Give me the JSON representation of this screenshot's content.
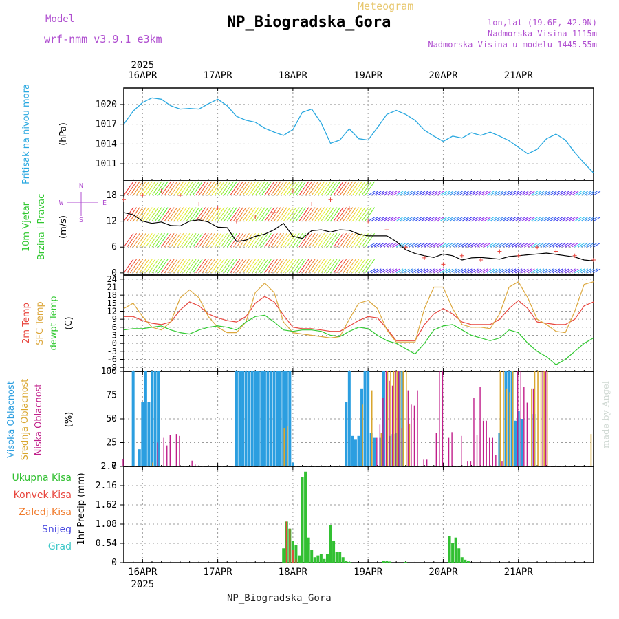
{
  "header": {
    "meteogram_label": "Meteogram",
    "station": "NP_Biogradska_Gora",
    "model_label": "Model",
    "model_value": "wrf-nmm_v3.9.1 e3km",
    "coord_line": "lon,lat (19.6E, 42.9N)",
    "elev_line": "Nadmorska Visina 1115m",
    "model_elev_line": "Nadmorska Visina u modelu 1445.55m"
  },
  "footer": {
    "station": "NP_Biogradska_Gora",
    "watermark": "made by Angel"
  },
  "colors": {
    "pressure": "#29a8e0",
    "wind_speed": "#000000",
    "t2m": "#e8463e",
    "sfc": "#dca73c",
    "dewpt": "#2fc82f",
    "high_cloud": "#2b9ee0",
    "mid_cloud": "#d9a62e",
    "low_cloud": "#c01e8a",
    "precip_total": "#32c032",
    "precip_conv": "#e8463e",
    "freezing": "#f07a2a",
    "snow": "#4a4ae0",
    "hail": "#3cc8c8",
    "label_purple": "#b04fd0"
  },
  "chart_data": [
    {
      "id": "pressure",
      "type": "line",
      "ylabel_lines": [
        "Pritisak na nivou mora",
        "(hPa)"
      ],
      "yticks": [
        1011,
        1014,
        1017,
        1020
      ],
      "ylim": [
        1008.5,
        1022.5
      ],
      "x_hours": [
        0,
        3,
        6,
        9,
        12,
        15,
        18,
        21,
        24,
        27,
        30,
        33,
        36,
        39,
        42,
        45,
        48,
        51,
        54,
        57,
        60,
        63,
        66,
        69,
        72,
        75,
        78,
        81,
        84,
        87,
        90,
        93,
        96,
        99,
        102,
        105,
        108,
        111,
        114,
        117,
        120,
        123,
        126,
        129,
        132,
        135,
        138,
        141,
        144,
        147,
        150
      ],
      "values": [
        1017,
        1019,
        1020.3,
        1021,
        1020.8,
        1019.8,
        1019.3,
        1019.4,
        1019.3,
        1020.1,
        1020.8,
        1019.8,
        1018.2,
        1017.6,
        1017.3,
        1016.4,
        1015.8,
        1015.3,
        1016.2,
        1018.8,
        1019.3,
        1017.2,
        1014.1,
        1014.6,
        1016.3,
        1014.8,
        1014.6,
        1016.5,
        1018.5,
        1019.1,
        1018.5,
        1017.6,
        1016.1,
        1015.2,
        1014.4,
        1015.2,
        1014.9,
        1015.7,
        1015.3,
        1015.8,
        1015.2,
        1014.5,
        1013.5,
        1012.5,
        1013.2,
        1014.8,
        1015.5,
        1014.6,
        1012.7,
        1011.1,
        1009.6
      ]
    },
    {
      "id": "wind",
      "type": "line",
      "ylabel_lines": [
        "10m Vjetar",
        "Brzina i Pravac",
        "(m/s)"
      ],
      "compass": {
        "n": "N",
        "s": "S",
        "e": "E",
        "w": "W"
      },
      "yticks": [
        0,
        6,
        12,
        18
      ],
      "ylim": [
        -0.5,
        21.5
      ],
      "x_hours": [
        0,
        3,
        6,
        9,
        12,
        15,
        18,
        21,
        24,
        27,
        30,
        33,
        36,
        39,
        42,
        45,
        48,
        51,
        54,
        57,
        60,
        63,
        66,
        69,
        72,
        75,
        78,
        81,
        84,
        87,
        90,
        93,
        96,
        99,
        102,
        105,
        108,
        111,
        114,
        117,
        120,
        123,
        126,
        129,
        132,
        135,
        138,
        141,
        144,
        147,
        150
      ],
      "speed": [
        14,
        13.5,
        12,
        11.5,
        11.8,
        11,
        10.9,
        12,
        12.3,
        11.8,
        10.6,
        10.5,
        7.3,
        7.6,
        8.5,
        9,
        10,
        11.5,
        8.5,
        8,
        9.8,
        10,
        9.5,
        10,
        9.9,
        9,
        8.6,
        8.6,
        8.6,
        7.3,
        5.4,
        4.5,
        4,
        3.6,
        4.4,
        4,
        3,
        3.5,
        3.6,
        3.4,
        3.2,
        3.8,
        4,
        4.2,
        4.4,
        4.6,
        4.3,
        4,
        3.7,
        3,
        2.8
      ],
      "gust_x_hours": [
        0,
        6,
        12,
        18,
        24,
        30,
        36,
        42,
        48,
        54,
        60,
        66,
        72,
        78,
        84,
        90,
        96,
        102,
        108,
        114,
        120,
        126,
        132,
        138,
        144,
        150
      ],
      "gust": [
        17,
        18,
        19,
        18,
        16,
        15,
        12,
        13,
        14,
        19,
        16,
        17,
        15,
        12,
        10,
        6,
        3.5,
        2,
        4,
        3,
        5,
        4,
        6,
        5,
        4,
        3
      ],
      "barb_rows": [
        0,
        6,
        12,
        18
      ]
    },
    {
      "id": "temperature",
      "type": "line",
      "ylabel_lines": [
        "2m Temp",
        "SFC Temp",
        "dewpt Temp",
        "(C)"
      ],
      "yticks": [
        -9,
        -6,
        -3,
        0,
        3,
        6,
        9,
        12,
        15,
        18,
        21,
        24
      ],
      "ylim": [
        -10.5,
        25.5
      ],
      "x_hours": [
        0,
        3,
        6,
        9,
        12,
        15,
        18,
        21,
        24,
        27,
        30,
        33,
        36,
        39,
        42,
        45,
        48,
        51,
        54,
        57,
        60,
        63,
        66,
        69,
        72,
        75,
        78,
        81,
        84,
        87,
        90,
        93,
        96,
        99,
        102,
        105,
        108,
        111,
        114,
        117,
        120,
        123,
        126,
        129,
        132,
        135,
        138,
        141,
        144,
        147,
        150
      ],
      "series": [
        {
          "name": "2m Temp",
          "values": [
            10,
            10,
            8.5,
            7.5,
            7,
            8,
            12.5,
            15.5,
            14,
            11,
            9.5,
            8.5,
            8,
            10,
            15,
            17.5,
            15.5,
            10.5,
            6,
            5.5,
            5.5,
            5,
            4.5,
            4.5,
            6.5,
            8.5,
            10,
            9.5,
            5.5,
            1,
            1,
            1,
            7,
            11,
            13,
            11,
            8,
            7,
            7,
            7,
            9,
            13,
            16,
            13,
            8,
            7.5,
            7,
            7,
            9,
            14,
            15.5
          ]
        },
        {
          "name": "SFC Temp",
          "values": [
            13,
            15,
            10,
            6,
            5,
            8,
            17,
            20,
            17,
            10,
            6,
            4,
            4,
            8,
            19,
            22.5,
            19,
            8,
            4,
            3.5,
            3,
            2.5,
            2,
            2.5,
            9,
            15,
            16,
            13,
            5,
            0.5,
            0.5,
            0.5,
            13,
            21,
            21,
            13,
            7,
            6,
            6,
            5.5,
            11,
            21,
            23,
            17,
            9,
            7,
            4.5,
            4,
            12,
            22,
            23
          ]
        },
        {
          "name": "dewpt Temp",
          "values": [
            5,
            5.5,
            5.5,
            6,
            6.5,
            5,
            4,
            3.5,
            5,
            6,
            6.5,
            6,
            5,
            8,
            10,
            10.5,
            8,
            5,
            4.5,
            5,
            5,
            4.5,
            3,
            2.5,
            4.5,
            6,
            5.5,
            3,
            1,
            0,
            -2,
            -4,
            0,
            5,
            6.5,
            7,
            5,
            3,
            2,
            1,
            2,
            5,
            4,
            0,
            -3,
            -5,
            -8,
            -6,
            -3,
            0,
            2
          ]
        }
      ]
    },
    {
      "id": "clouds",
      "type": "bar",
      "ylabel_lines": [
        "Visoka Oblacnost",
        "Srednja Oblacnost",
        "Niska Oblacnost",
        "(%)"
      ],
      "yticks": [
        0,
        25,
        50,
        75,
        100
      ],
      "ylim": [
        0,
        100
      ],
      "high": [
        [
          3,
          100
        ],
        [
          5,
          18
        ],
        [
          6,
          68
        ],
        [
          7,
          100
        ],
        [
          8,
          68
        ],
        [
          9,
          100
        ],
        [
          10,
          100
        ],
        [
          11,
          100
        ],
        [
          36,
          100
        ],
        [
          37,
          100
        ],
        [
          38,
          100
        ],
        [
          39,
          100
        ],
        [
          40,
          100
        ],
        [
          41,
          100
        ],
        [
          42,
          100
        ],
        [
          43,
          100
        ],
        [
          44,
          100
        ],
        [
          45,
          100
        ],
        [
          46,
          100
        ],
        [
          47,
          100
        ],
        [
          48,
          100
        ],
        [
          49,
          100
        ],
        [
          50,
          100
        ],
        [
          51,
          100
        ],
        [
          52,
          100
        ],
        [
          53,
          100
        ],
        [
          54,
          4
        ],
        [
          71,
          68
        ],
        [
          72,
          100
        ],
        [
          73,
          32
        ],
        [
          74,
          28
        ],
        [
          75,
          32
        ],
        [
          76,
          82
        ],
        [
          77,
          100
        ],
        [
          78,
          100
        ],
        [
          79,
          35
        ],
        [
          80,
          30
        ],
        [
          82,
          30
        ],
        [
          83,
          100
        ],
        [
          85,
          32
        ],
        [
          86,
          34
        ],
        [
          87,
          35
        ],
        [
          88,
          100
        ],
        [
          89,
          100
        ],
        [
          120,
          35
        ],
        [
          122,
          100
        ],
        [
          123,
          100
        ],
        [
          124,
          100
        ],
        [
          125,
          48
        ],
        [
          126,
          58
        ],
        [
          127,
          50
        ],
        [
          131,
          55
        ]
      ],
      "mid": [
        [
          9,
          4
        ],
        [
          51,
          40
        ],
        [
          52,
          42
        ],
        [
          76,
          65
        ],
        [
          79,
          80
        ],
        [
          82,
          35
        ],
        [
          84,
          100
        ],
        [
          85,
          100
        ],
        [
          86,
          100
        ],
        [
          87,
          100
        ],
        [
          88,
          100
        ],
        [
          89,
          100
        ],
        [
          90,
          100
        ],
        [
          91,
          45
        ],
        [
          120,
          100
        ],
        [
          121,
          100
        ],
        [
          122,
          82
        ],
        [
          123,
          78
        ],
        [
          124,
          100
        ],
        [
          130,
          82
        ],
        [
          131,
          100
        ],
        [
          132,
          100
        ],
        [
          133,
          100
        ],
        [
          134,
          100
        ],
        [
          135,
          100
        ],
        [
          149,
          34
        ]
      ],
      "low": [
        [
          0,
          8
        ],
        [
          11,
          25
        ],
        [
          13,
          30
        ],
        [
          14,
          22
        ],
        [
          15,
          33
        ],
        [
          17,
          34
        ],
        [
          18,
          32
        ],
        [
          22,
          6
        ],
        [
          23,
          2
        ],
        [
          81,
          30
        ],
        [
          82,
          44
        ],
        [
          83,
          72
        ],
        [
          84,
          100
        ],
        [
          85,
          90
        ],
        [
          86,
          85
        ],
        [
          87,
          100
        ],
        [
          88,
          100
        ],
        [
          89,
          40
        ],
        [
          91,
          80
        ],
        [
          92,
          65
        ],
        [
          93,
          64
        ],
        [
          94,
          80
        ],
        [
          96,
          7
        ],
        [
          97,
          7
        ],
        [
          100,
          35
        ],
        [
          101,
          100
        ],
        [
          102,
          100
        ],
        [
          104,
          30
        ],
        [
          105,
          36
        ],
        [
          108,
          32
        ],
        [
          110,
          5
        ],
        [
          111,
          5
        ],
        [
          112,
          72
        ],
        [
          113,
          33
        ],
        [
          114,
          84
        ],
        [
          115,
          48
        ],
        [
          116,
          48
        ],
        [
          117,
          30
        ],
        [
          118,
          30
        ],
        [
          119,
          12
        ],
        [
          121,
          5
        ],
        [
          126,
          100
        ],
        [
          127,
          100
        ],
        [
          128,
          84
        ],
        [
          129,
          67
        ],
        [
          131,
          82
        ],
        [
          134,
          100
        ],
        [
          135,
          100
        ]
      ]
    },
    {
      "id": "precip",
      "type": "bar",
      "ylabel_lines": [
        "1hr Precip (mm)"
      ],
      "legend": [
        "Ukupna Kisa",
        "Konvek.Kisa",
        "Zaledj.Kisa",
        "Snijeg",
        "Grad"
      ],
      "yticks": [
        0,
        0.54,
        1.08,
        1.62,
        2.16,
        2.7
      ],
      "ylim": [
        0,
        2.7
      ],
      "total": [
        [
          51,
          0.4
        ],
        [
          52,
          1.15
        ],
        [
          53,
          0.95
        ],
        [
          54,
          0.6
        ],
        [
          55,
          0.5
        ],
        [
          56,
          0.2
        ],
        [
          57,
          2.4
        ],
        [
          58,
          2.55
        ],
        [
          59,
          0.7
        ],
        [
          60,
          0.35
        ],
        [
          61,
          0.15
        ],
        [
          62,
          0.2
        ],
        [
          63,
          0.25
        ],
        [
          64,
          0.1
        ],
        [
          65,
          0.25
        ],
        [
          66,
          1.05
        ],
        [
          67,
          0.6
        ],
        [
          68,
          0.3
        ],
        [
          69,
          0.3
        ],
        [
          70,
          0.15
        ],
        [
          71,
          0.05
        ],
        [
          72,
          0.02
        ],
        [
          83,
          0.04
        ],
        [
          84,
          0.05
        ],
        [
          85,
          0.03
        ],
        [
          90,
          0.02
        ],
        [
          104,
          0.75
        ],
        [
          105,
          0.55
        ],
        [
          106,
          0.7
        ],
        [
          107,
          0.4
        ],
        [
          108,
          0.15
        ],
        [
          109,
          0.08
        ],
        [
          110,
          0.04
        ]
      ],
      "conv": [
        [
          52,
          1.15
        ],
        [
          53,
          0.95
        ],
        [
          54,
          0.35
        ],
        [
          55,
          0.1
        ]
      ]
    }
  ],
  "time_axis": {
    "year": "2025",
    "days": [
      "16APR",
      "17APR",
      "18APR",
      "19APR",
      "20APR",
      "21APR"
    ],
    "day_hours": [
      6,
      30,
      54,
      78,
      102,
      126
    ],
    "hours_span": 150
  }
}
